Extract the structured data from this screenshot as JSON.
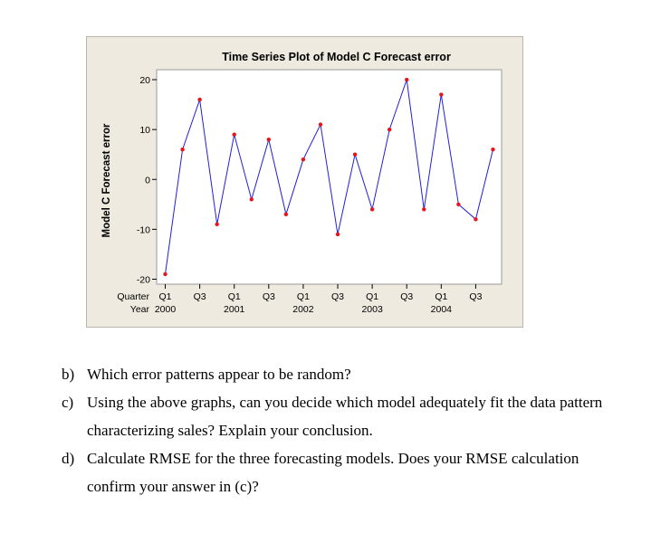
{
  "chart_data": {
    "type": "line",
    "title": "Time Series Plot of Model C Forecast error",
    "ylabel": "Model C Forecast error",
    "xlabel_rows": [
      "Quarter",
      "Year"
    ],
    "ylim": [
      -21,
      22
    ],
    "yticks": [
      -20,
      -10,
      0,
      10,
      20
    ],
    "xlim": [
      0.5,
      20.5
    ],
    "x_ticks": [
      {
        "x": 1,
        "quarter": "Q1",
        "year": "2000"
      },
      {
        "x": 3,
        "quarter": "Q3",
        "year": ""
      },
      {
        "x": 5,
        "quarter": "Q1",
        "year": "2001"
      },
      {
        "x": 7,
        "quarter": "Q3",
        "year": ""
      },
      {
        "x": 9,
        "quarter": "Q1",
        "year": "2002"
      },
      {
        "x": 11,
        "quarter": "Q3",
        "year": ""
      },
      {
        "x": 13,
        "quarter": "Q1",
        "year": "2003"
      },
      {
        "x": 15,
        "quarter": "Q3",
        "year": ""
      },
      {
        "x": 17,
        "quarter": "Q1",
        "year": "2004"
      },
      {
        "x": 19,
        "quarter": "Q3",
        "year": ""
      }
    ],
    "series": [
      {
        "x": [
          1,
          2,
          3,
          4,
          5,
          6,
          7,
          8,
          9,
          10,
          11,
          12,
          13,
          14,
          15,
          16,
          17,
          18,
          19,
          20
        ],
        "values": [
          -19,
          6,
          16,
          -9,
          9,
          -4,
          8,
          -7,
          4,
          11,
          -11,
          5,
          -6,
          10,
          20,
          -6,
          17,
          -5,
          -8,
          6
        ]
      }
    ],
    "colors": {
      "line": "#1f1fdc",
      "marker": "#e8131b",
      "panel": "#eeeae0",
      "plot": "#ffffff"
    },
    "grid": false,
    "legend": "none"
  },
  "questions": [
    {
      "letter": "b)",
      "lines": [
        "Which error patterns appear to be random?"
      ]
    },
    {
      "letter": "c)",
      "lines": [
        "Using the above graphs, can you decide which model adequately fit the data pattern",
        "characterizing sales? Explain your conclusion."
      ]
    },
    {
      "letter": "d)",
      "lines": [
        "Calculate RMSE for the three forecasting models. Does your RMSE calculation",
        "confirm your answer in (c)?"
      ]
    }
  ]
}
